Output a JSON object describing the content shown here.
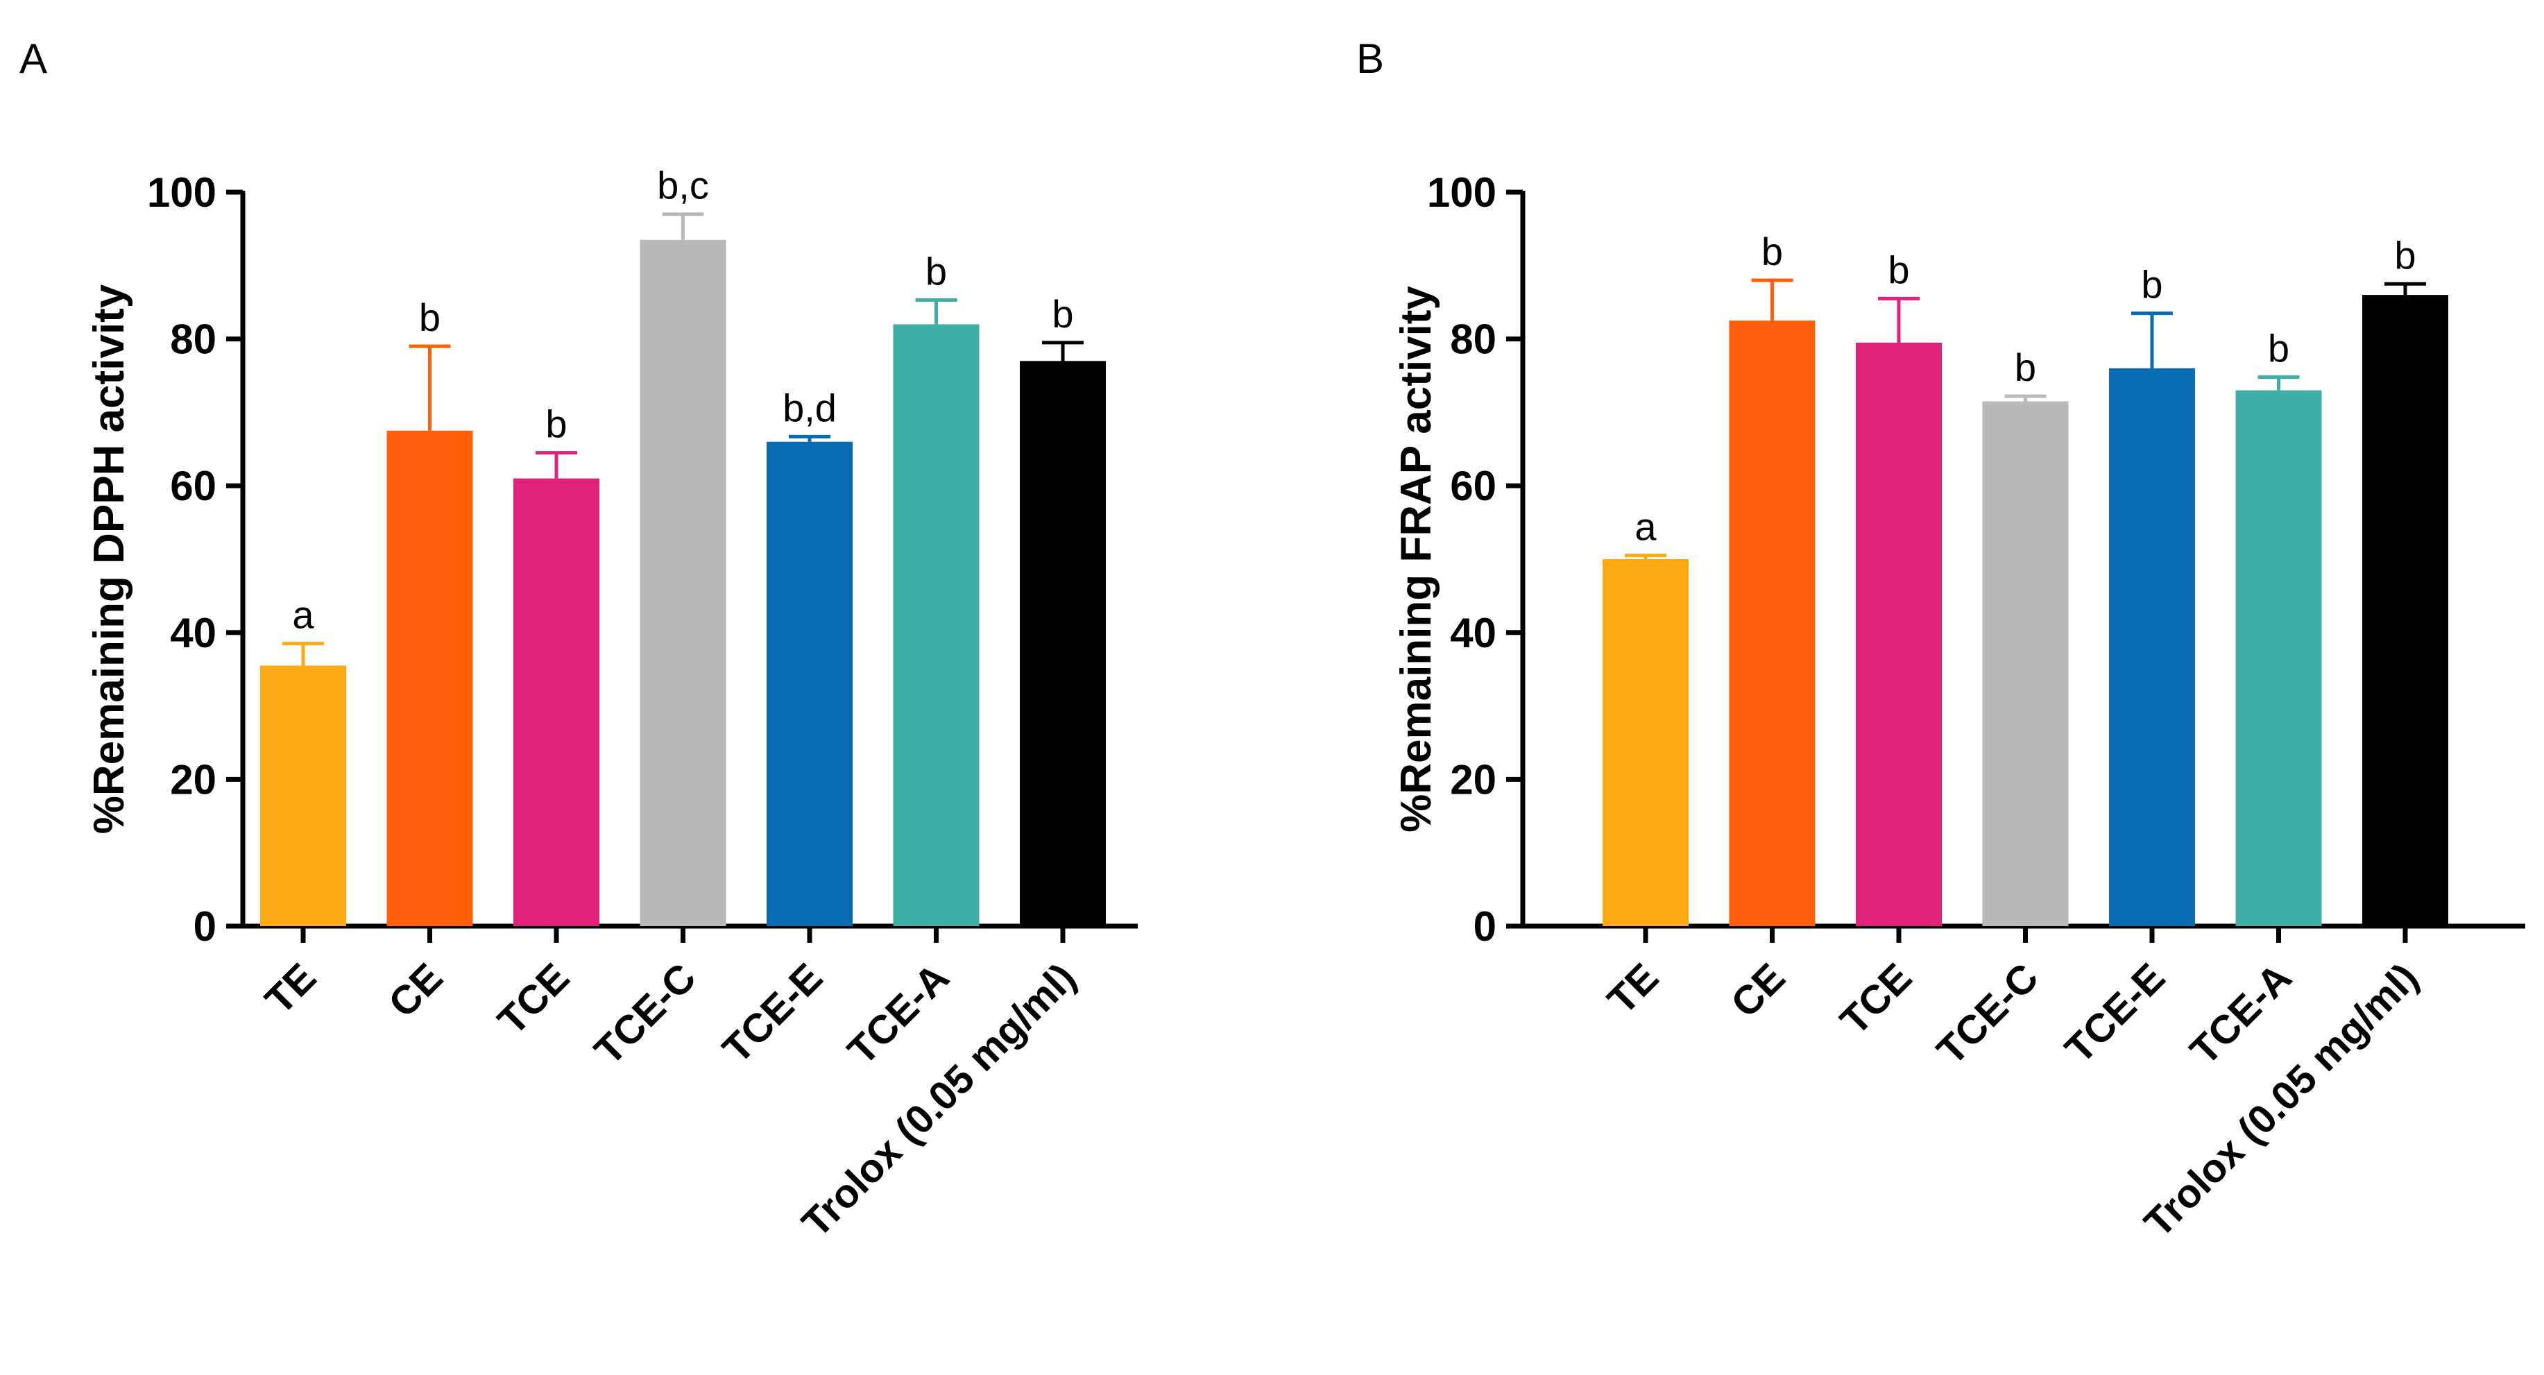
{
  "chart_data": [
    {
      "panel": "A",
      "type": "bar",
      "ylabel": "%Remaining DPPH activity",
      "xlabel": "",
      "ylim": [
        0,
        100
      ],
      "yticks": [
        0,
        20,
        40,
        60,
        80,
        100
      ],
      "categories": [
        "TE",
        "CE",
        "TCE",
        "TCE-C",
        "TCE-E",
        "TCE-A",
        "Trolox (0.05 mg/ml)"
      ],
      "values": [
        35.5,
        67.5,
        61,
        93.5,
        66,
        82,
        77
      ],
      "errors": [
        3,
        11.5,
        3.5,
        3.5,
        0.7,
        3.3,
        2.5
      ],
      "significance": [
        "a",
        "b",
        "b",
        "b,c",
        "b,d",
        "b",
        "b"
      ],
      "colors": [
        "#FFAA12",
        "#FF5F0A",
        "#E0237A",
        "#B9B9B9",
        "#0A6CB0",
        "#3FAEA6",
        "#000000"
      ]
    },
    {
      "panel": "B",
      "type": "bar",
      "ylabel": "%Remaining FRAP activity",
      "xlabel": "",
      "ylim": [
        0,
        100
      ],
      "yticks": [
        0,
        20,
        40,
        60,
        80,
        100
      ],
      "categories": [
        "TE",
        "CE",
        "TCE",
        "TCE-C",
        "TCE-E",
        "TCE-A",
        "Trolox (0.05 mg/ml)"
      ],
      "values": [
        50,
        82.5,
        79.5,
        71.5,
        76,
        73,
        86
      ],
      "errors": [
        0.5,
        5.5,
        6,
        0.7,
        7.5,
        1.8,
        1.5
      ],
      "significance": [
        "a",
        "b",
        "b",
        "b",
        "b",
        "b",
        "b"
      ],
      "colors": [
        "#FFAA12",
        "#FF5F0A",
        "#E0237A",
        "#B9B9B9",
        "#0A6CB0",
        "#3FAEA6",
        "#000000"
      ]
    }
  ]
}
